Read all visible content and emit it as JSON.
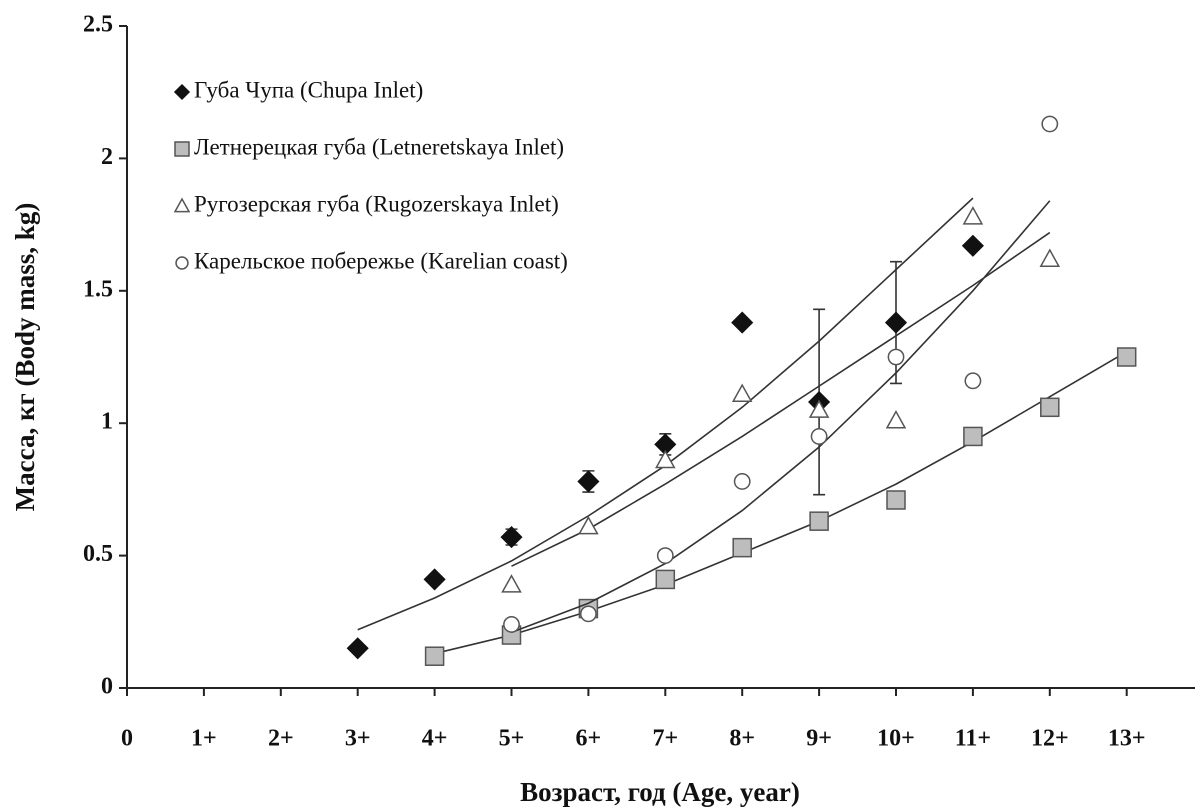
{
  "chart_data": {
    "type": "scatter",
    "xlabel": "Возраст, год (Age, year)",
    "ylabel": "Масса, кг (Body mass, kg)",
    "categories": [
      "0",
      "1+",
      "2+",
      "3+",
      "4+",
      "5+",
      "6+",
      "7+",
      "8+",
      "9+",
      "10+",
      "11+",
      "12+",
      "13+"
    ],
    "ylim": [
      0,
      2.5
    ],
    "yticks": [
      0,
      0.5,
      1,
      1.5,
      2,
      2.5
    ],
    "legend": "top-left",
    "series": [
      {
        "name": "Губа Чупа (Chupa Inlet)",
        "marker": "diamond",
        "color": "#111111",
        "values": [
          null,
          null,
          null,
          0.15,
          0.41,
          0.57,
          0.78,
          0.92,
          1.38,
          1.08,
          1.38,
          1.67,
          null,
          null
        ],
        "errors": [
          null,
          null,
          null,
          null,
          null,
          0.03,
          0.04,
          0.04,
          null,
          0.35,
          0.23,
          null,
          null,
          null
        ],
        "trend": [
          null,
          null,
          null,
          0.22,
          0.34,
          0.48,
          0.65,
          0.84,
          1.06,
          1.31,
          1.58,
          1.85,
          null,
          null
        ]
      },
      {
        "name": "Летнерецкая губа (Letneretskaya Inlet)",
        "marker": "square",
        "color": "#bdbdbd",
        "values": [
          null,
          null,
          null,
          null,
          0.12,
          0.2,
          0.3,
          0.41,
          0.53,
          0.63,
          0.71,
          0.95,
          1.06,
          1.25
        ],
        "trend": [
          null,
          null,
          null,
          null,
          0.13,
          0.2,
          0.29,
          0.39,
          0.51,
          0.63,
          0.77,
          0.93,
          1.1,
          1.27
        ]
      },
      {
        "name": "Ругозерская губа (Rugozerskaya Inlet)",
        "marker": "triangle",
        "color": "#ffffff",
        "values": [
          null,
          null,
          null,
          null,
          null,
          0.39,
          0.61,
          0.86,
          1.11,
          1.05,
          1.01,
          1.78,
          1.62,
          null
        ],
        "trend": [
          null,
          null,
          null,
          null,
          null,
          0.46,
          0.6,
          0.77,
          0.95,
          1.14,
          1.33,
          1.52,
          1.72,
          null
        ]
      },
      {
        "name": "Карельское побережье (Karelian coast)",
        "marker": "circle",
        "color": "#ffffff",
        "values": [
          null,
          null,
          null,
          null,
          null,
          0.24,
          0.28,
          0.5,
          0.78,
          0.95,
          1.25,
          1.16,
          2.13,
          null
        ],
        "trend": [
          null,
          null,
          null,
          null,
          null,
          0.21,
          0.32,
          0.47,
          0.67,
          0.91,
          1.19,
          1.5,
          1.84,
          null
        ]
      }
    ]
  }
}
